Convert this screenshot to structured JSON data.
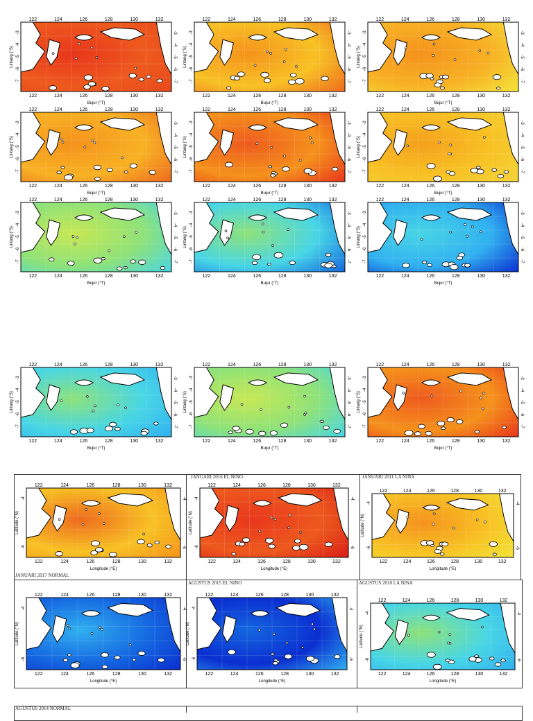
{
  "ticks": {
    "lon": [
      "122",
      "124",
      "126",
      "128",
      "130",
      "132"
    ],
    "lat_left": [
      "-3",
      "-4",
      "-5",
      "-6",
      "-7"
    ],
    "lat_right": [
      "-3",
      "-4",
      "-5",
      "-6",
      "-7"
    ],
    "lat_left_b": [
      "-4",
      "-6"
    ],
    "lat_right_b": [
      "-4",
      "-6"
    ]
  },
  "labels": {
    "ylabel_a": "Lintang (°S)",
    "xlabel_a": "Bujur (°T)",
    "ylabel_b": "Latitude (°N)",
    "xlabel_b": "Longitude (°E)"
  },
  "titles": {
    "t1": "JANUARI 2016 EL NINO",
    "t2": "JANUARI 2011 LA NINA",
    "t3": "JANUARI 2017 NORMAL",
    "t4": "AGUSTUS 2015 EL NINO",
    "t5": "AGUSTUS 2010 LA NINA",
    "t6": "AGUSTUS 2014 NORMAL"
  },
  "colors": {
    "red": "#e8361c",
    "red_orange": "#ee5a1e",
    "orange": "#f5921c",
    "yellow_orange": "#f8c225",
    "yellow": "#f3e53a",
    "green_yellow": "#c8e854",
    "green": "#8ee27a",
    "cyan": "#48d6e6",
    "light_blue": "#31b0f0",
    "blue": "#1466e0",
    "dark_blue": "#0a2ed0"
  },
  "maps": [
    {
      "id": "m1",
      "tone": [
        "#e8361c",
        "#ee5a1e",
        "#e84a1c"
      ]
    },
    {
      "id": "m2",
      "tone": [
        "#f5921c",
        "#f8c225",
        "#ee6a1e"
      ]
    },
    {
      "id": "m3",
      "tone": [
        "#f5921c",
        "#f8b225",
        "#f3e53a"
      ]
    },
    {
      "id": "m4",
      "tone": [
        "#f5921c",
        "#f8b225",
        "#ee6a1e"
      ]
    },
    {
      "id": "m5",
      "tone": [
        "#ee5a1e",
        "#f5921c",
        "#e8361c"
      ]
    },
    {
      "id": "m6",
      "tone": [
        "#f5a01c",
        "#f8c225",
        "#f3d53a"
      ]
    },
    {
      "id": "m7",
      "tone": [
        "#c8e854",
        "#8ee27a",
        "#48d6e6"
      ]
    },
    {
      "id": "m8",
      "tone": [
        "#8ee27a",
        "#48d6e6",
        "#1466e0"
      ]
    },
    {
      "id": "m9",
      "tone": [
        "#48d6e6",
        "#31b0f0",
        "#0a2ed0"
      ]
    },
    {
      "id": "m10",
      "tone": [
        "#8ee27a",
        "#48d6e6",
        "#31b0f0"
      ]
    },
    {
      "id": "m11",
      "tone": [
        "#c8e854",
        "#8ee27a",
        "#48d6e6"
      ]
    },
    {
      "id": "m12",
      "tone": [
        "#ee5a1e",
        "#f5921c",
        "#e8361c"
      ]
    },
    {
      "id": "m13",
      "tone": [
        "#ee6a1e",
        "#f8c225",
        "#f5921c"
      ]
    },
    {
      "id": "m14",
      "tone": [
        "#e8361c",
        "#ee5a1e",
        "#d81e18"
      ]
    },
    {
      "id": "m15",
      "tone": [
        "#f5921c",
        "#f8c225",
        "#f3e53a"
      ]
    },
    {
      "id": "m16",
      "tone": [
        "#31b0f0",
        "#1466e0",
        "#0a2ed0"
      ]
    },
    {
      "id": "m17",
      "tone": [
        "#1466e0",
        "#0a2ed0",
        "#31b0f0"
      ]
    },
    {
      "id": "m18",
      "tone": [
        "#8ee27a",
        "#48d6e6",
        "#31b0f0"
      ]
    }
  ]
}
